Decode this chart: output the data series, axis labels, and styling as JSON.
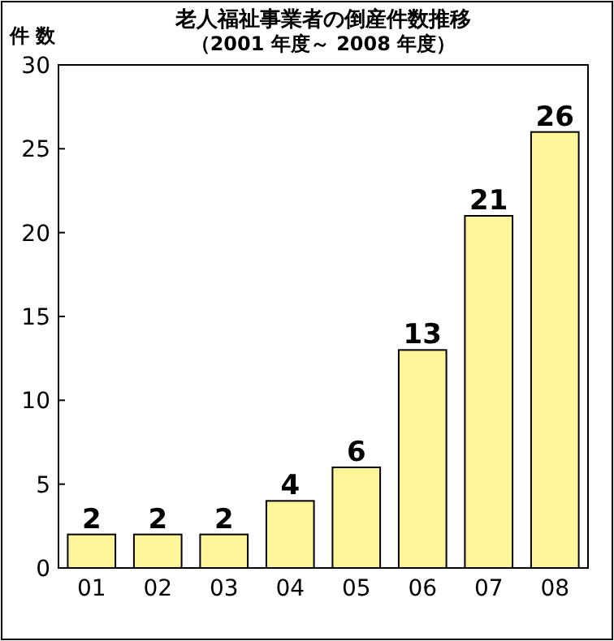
{
  "chart_data": {
    "type": "bar",
    "title": "老人福祉事業者の倒産件数推移",
    "subtitle": "（2001 年度～ 2008 年度）",
    "ylabel": "件 数",
    "categories": [
      "01",
      "02",
      "03",
      "04",
      "05",
      "06",
      "07",
      "08"
    ],
    "values": [
      2,
      2,
      2,
      4,
      6,
      13,
      21,
      26
    ],
    "color": "#fff59a",
    "ylim": [
      0,
      30
    ],
    "yticks": [
      0,
      5,
      10,
      15,
      20,
      25,
      30
    ],
    "data_labels": true
  }
}
